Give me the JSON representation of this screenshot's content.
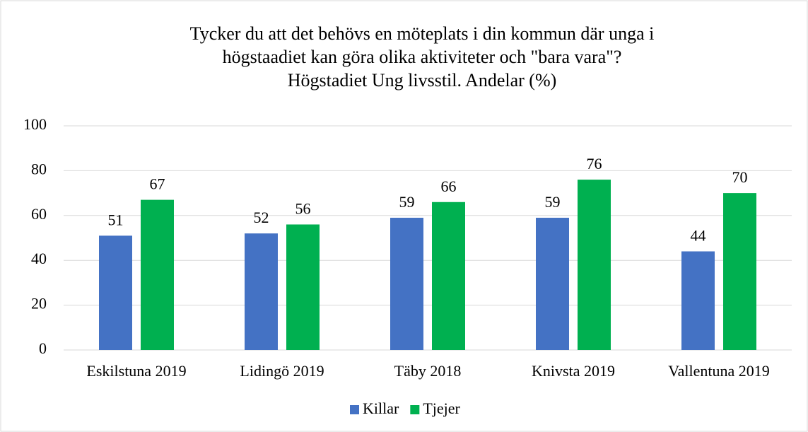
{
  "chart_data": {
    "type": "bar",
    "title": [
      "Tycker du att det behövs en möteplats i din kommun där unga i",
      "högstaadiet kan göra olika aktiviteter och \"bara vara\"?",
      "Högstadiet Ung livsstil. Andelar (%)"
    ],
    "categories": [
      "Eskilstuna 2019",
      "Lidingö 2019",
      "Täby 2018",
      "Knivsta 2019",
      "Vallentuna 2019"
    ],
    "series": [
      {
        "name": "Killar",
        "color": "#4472c4",
        "values": [
          51,
          52,
          59,
          59,
          44
        ]
      },
      {
        "name": "Tjejer",
        "color": "#00b050",
        "values": [
          67,
          56,
          66,
          76,
          70
        ]
      }
    ],
    "ylim": [
      0,
      100
    ],
    "yticks": [
      0,
      20,
      40,
      60,
      80,
      100
    ],
    "grid": true,
    "legend": "bottom"
  }
}
